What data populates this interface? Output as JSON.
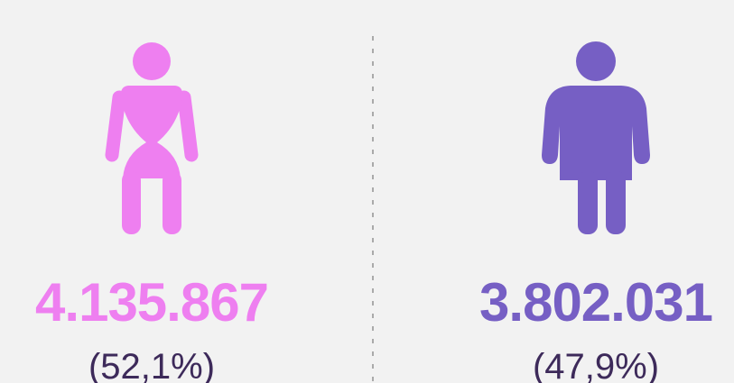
{
  "items": [
    {
      "value": "4.135.867",
      "share": "(52,1%)",
      "color": "#ee7ff0"
    },
    {
      "value": "3.802.031",
      "share": "(47,9%)",
      "color": "#765fc4"
    }
  ],
  "share_color": "#3d2a5a"
}
